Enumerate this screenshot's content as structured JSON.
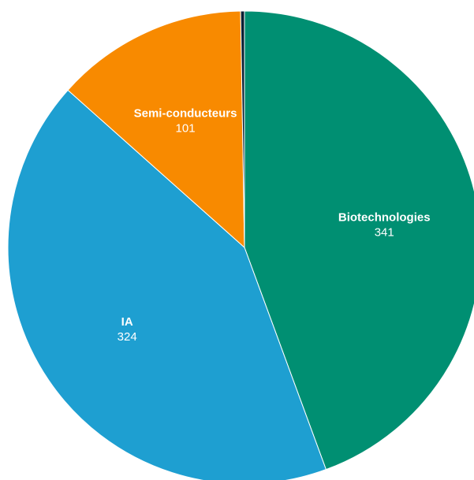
{
  "chart_data": {
    "type": "pie",
    "title": "",
    "start_angle_deg": 90,
    "direction": "clockwise",
    "legend": "none",
    "slices": [
      {
        "label": "Biotechnologies",
        "value": 341,
        "color": "#008F72"
      },
      {
        "label": "IA",
        "value": 324,
        "color": "#1E9FD1"
      },
      {
        "label": "Semi-conducteurs",
        "value": 101,
        "color": "#F88A00"
      },
      {
        "label": "",
        "value": 2,
        "color": "#0A1F33"
      }
    ]
  }
}
